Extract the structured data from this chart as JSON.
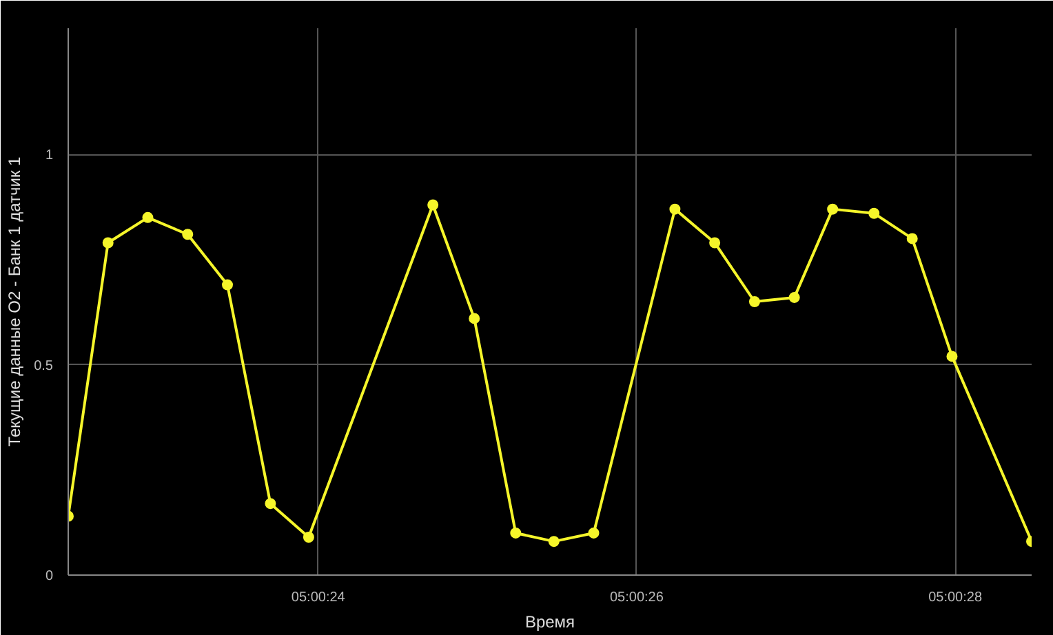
{
  "chart_data": {
    "type": "line",
    "xlabel": "Время",
    "ylabel": "Текущие данные O2 - Банк 1 датчик 1",
    "x": [
      5.0062306,
      5.0063,
      5.0063694,
      5.0064389,
      5.0065083,
      5.0065833,
      5.00665,
      5.0068667,
      5.0069389,
      5.0070111,
      5.0070778,
      5.0071472,
      5.0072889,
      5.0073583,
      5.0074278,
      5.0074972,
      5.0075639,
      5.0076361,
      5.0077028,
      5.0077722,
      5.0079111
    ],
    "series": [
      {
        "color": "#f5f52a",
        "values": [
          0.14,
          0.79,
          0.85,
          0.81,
          0.69,
          0.17,
          0.09,
          0.88,
          0.61,
          0.1,
          0.08,
          0.1,
          0.87,
          0.79,
          0.65,
          0.66,
          0.87,
          0.86,
          0.8,
          0.52,
          0.08
        ]
      }
    ],
    "xlim": [
      5.0062306,
      5.0079111
    ],
    "ylim": [
      0,
      1.3
    ],
    "xticks": [
      {
        "value": 5.0066667,
        "label": "05:00:24"
      },
      {
        "value": 5.0072222,
        "label": "05:00:26"
      },
      {
        "value": 5.0077778,
        "label": "05:00:28"
      }
    ],
    "yticks": [
      0,
      0.5,
      1
    ],
    "grid": true,
    "marker": "circle",
    "line_style": "solid"
  }
}
